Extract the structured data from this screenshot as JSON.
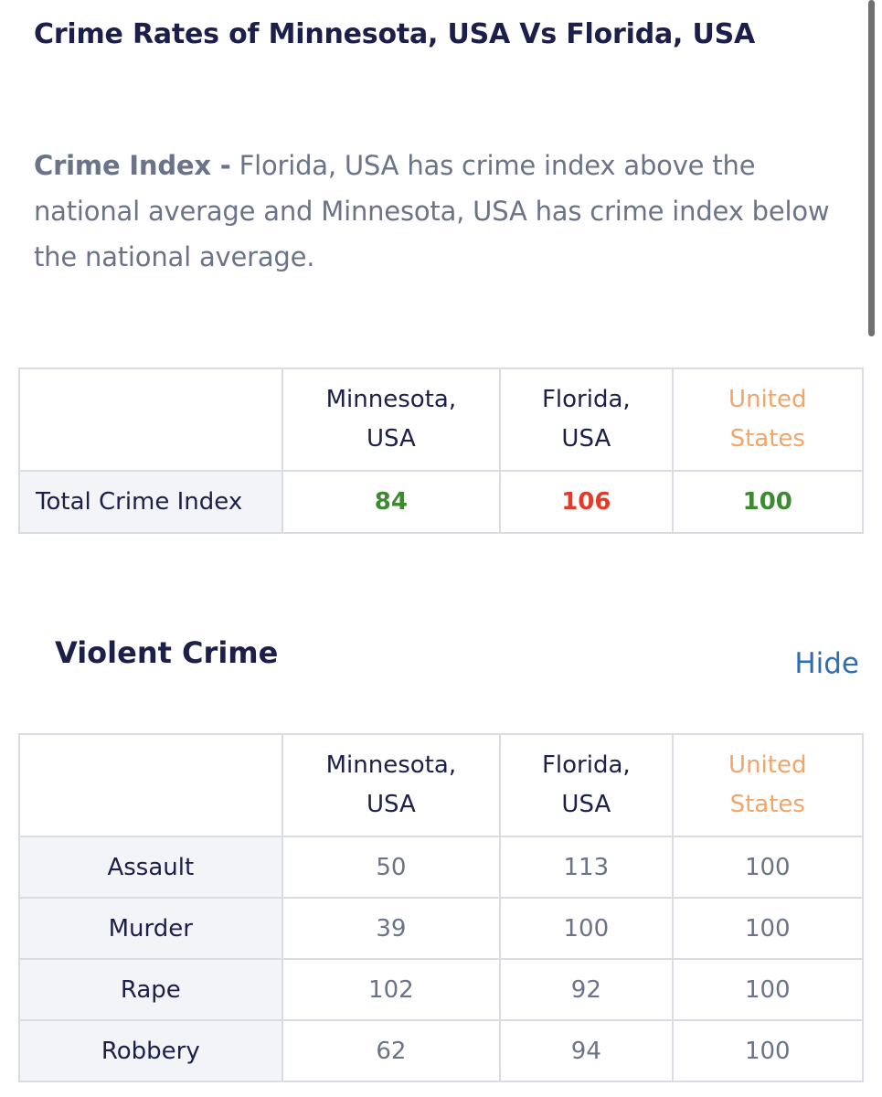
{
  "page_title": "Crime Rates of Minnesota, USA Vs Florida, USA",
  "summary": {
    "label": "Crime Index -",
    "text": " Florida, USA has crime index above the national average and Minnesota, USA has crime index below the national average."
  },
  "columns": {
    "minnesota": [
      "Minnesota,",
      "USA"
    ],
    "florida": [
      "Florida,",
      "USA"
    ],
    "united_states": [
      "United",
      "States"
    ]
  },
  "crime_index_table": {
    "row_label": "Total Crime Index",
    "minnesota": "84",
    "florida": "106",
    "united_states": "100"
  },
  "violent_crime": {
    "title": "Violent Crime",
    "toggle_label": "Hide",
    "rows": [
      {
        "label": "Assault",
        "minnesota": "50",
        "florida": "113",
        "united_states": "100"
      },
      {
        "label": "Murder",
        "minnesota": "39",
        "florida": "100",
        "united_states": "100"
      },
      {
        "label": "Rape",
        "minnesota": "102",
        "florida": "92",
        "united_states": "100"
      },
      {
        "label": "Robbery",
        "minnesota": "62",
        "florida": "94",
        "united_states": "100"
      }
    ]
  },
  "colors": {
    "heading": "#1b1f4a",
    "body_text": "#6b7388",
    "united_states_header": "#f2a56a",
    "below_average": "#3d8a32",
    "above_average": "#e23b2a",
    "link": "#2e6db4",
    "label_cell_bg": "#f3f4f7",
    "border": "#dadce3"
  }
}
